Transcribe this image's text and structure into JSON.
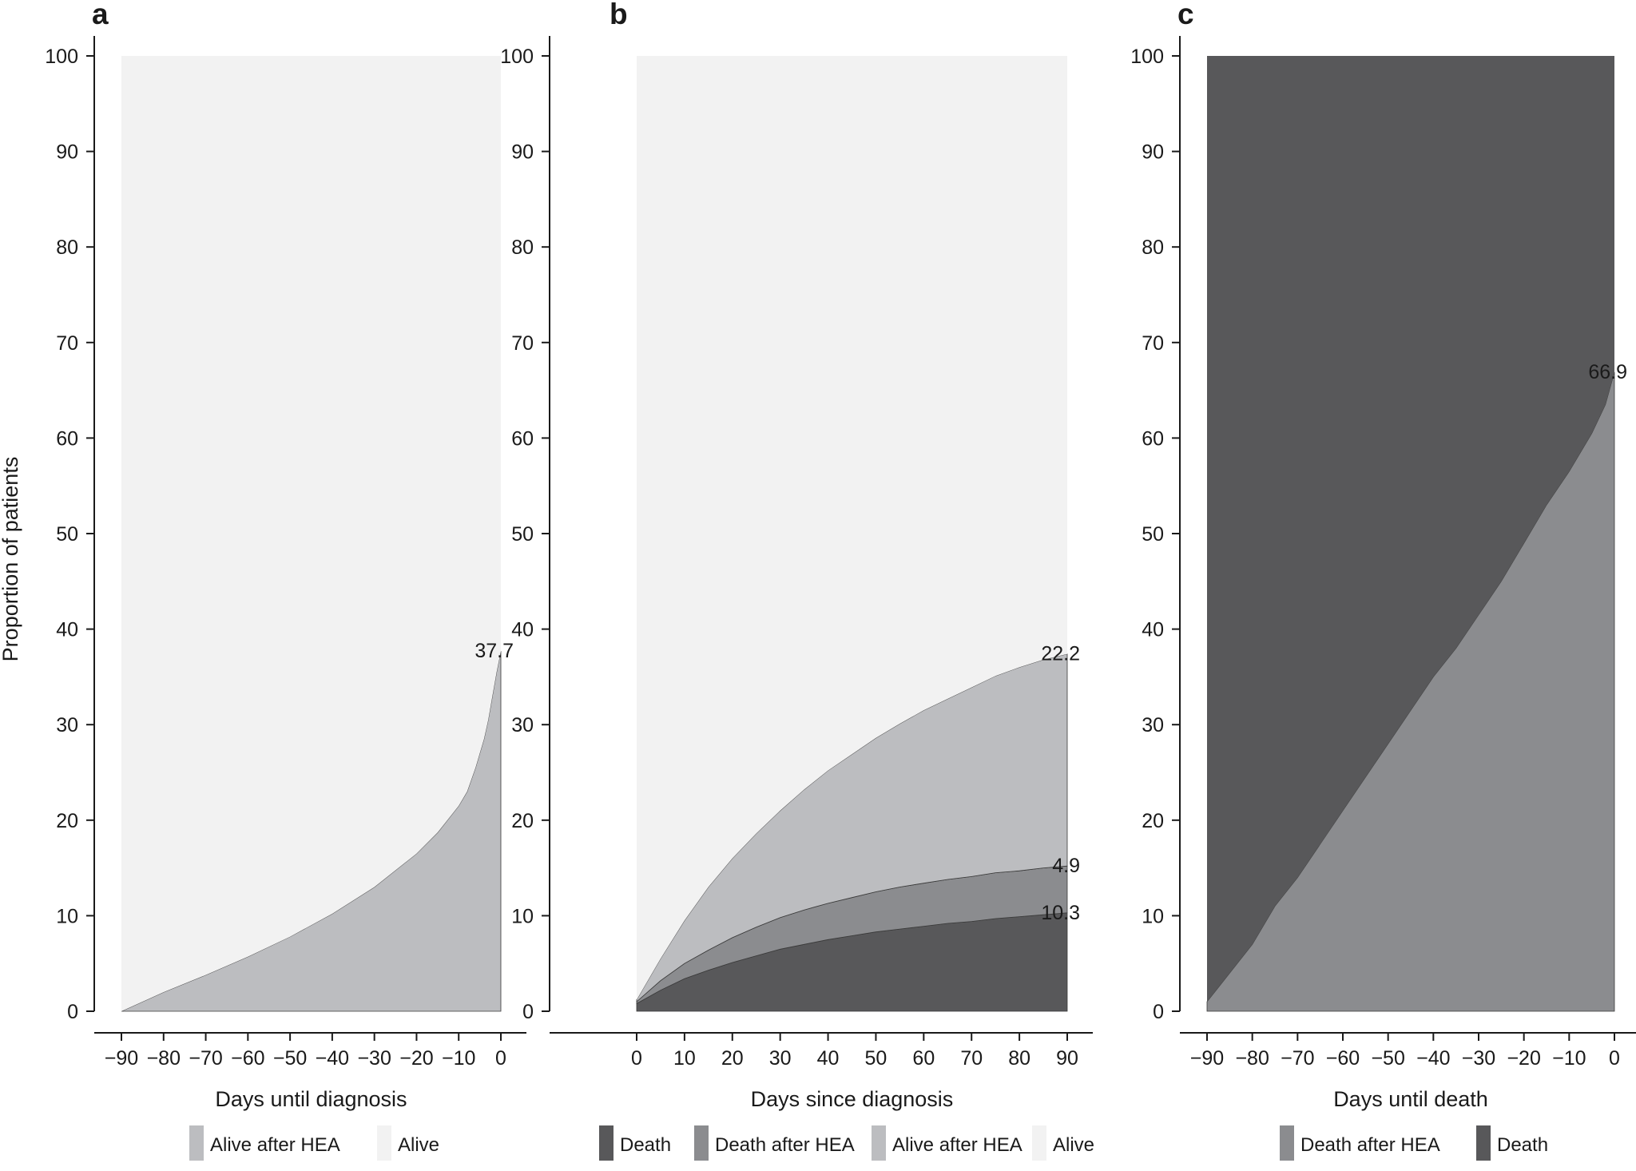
{
  "figure": {
    "ylabel": "Proportion of patients"
  },
  "colors": {
    "alive": "#f2f2f2",
    "alive_after_hea": "#bcbdc0",
    "death_after_hea": "#8b8c8f",
    "death": "#58585a",
    "axis": "#1a1a1a"
  },
  "chart_data": [
    {
      "type": "area",
      "stacked": true,
      "panel": "a",
      "xlabel": "Days until diagnosis",
      "ylabel": "Proportion of patients",
      "xlim": [
        -90,
        0
      ],
      "ylim": [
        0,
        100
      ],
      "xticks": [
        -90,
        -80,
        -70,
        -60,
        -50,
        -40,
        -30,
        -20,
        -10,
        0
      ],
      "xtick_labels": [
        "−90",
        "−80",
        "−70",
        "−60",
        "−50",
        "−40",
        "−30",
        "−20",
        "−10",
        "0"
      ],
      "yticks": [
        0,
        10,
        20,
        30,
        40,
        50,
        60,
        70,
        80,
        90,
        100
      ],
      "ytick_labels": [
        "0",
        "10",
        "20",
        "30",
        "40",
        "50",
        "60",
        "70",
        "80",
        "90",
        "100"
      ],
      "x": [
        -90,
        -80,
        -70,
        -60,
        -50,
        -40,
        -30,
        -20,
        -15,
        -10,
        -8,
        -6,
        -4,
        -3,
        -2,
        -1,
        0
      ],
      "series": [
        {
          "name": "Alive after HEA",
          "color": "#bcbdc0",
          "values": [
            0,
            2,
            3.8,
            5.7,
            7.8,
            10.2,
            13,
            16.5,
            18.7,
            21.5,
            23,
            25.5,
            28.5,
            30.5,
            33,
            35.5,
            37.7
          ]
        },
        {
          "name": "Alive",
          "color": "#f2f2f2",
          "values": [
            100,
            98,
            96.2,
            94.3,
            92.2,
            89.8,
            87,
            83.5,
            81.3,
            78.5,
            77,
            74.5,
            71.5,
            69.5,
            67,
            64.5,
            62.3
          ]
        }
      ],
      "annotations": [
        {
          "text": "37.7",
          "x": 0,
          "y": 37.7
        }
      ],
      "legend": [
        "Alive after HEA",
        "Alive"
      ]
    },
    {
      "type": "area",
      "stacked": true,
      "panel": "b",
      "xlabel": "Days since diagnosis",
      "ylabel": "",
      "xlim": [
        0,
        90
      ],
      "ylim": [
        0,
        100
      ],
      "xticks": [
        0,
        10,
        20,
        30,
        40,
        50,
        60,
        70,
        80,
        90
      ],
      "xtick_labels": [
        "0",
        "10",
        "20",
        "30",
        "40",
        "50",
        "60",
        "70",
        "80",
        "90"
      ],
      "yticks": [
        0,
        10,
        20,
        30,
        40,
        50,
        60,
        70,
        80,
        90,
        100
      ],
      "ytick_labels": [
        "0",
        "10",
        "20",
        "30",
        "40",
        "50",
        "60",
        "70",
        "80",
        "90",
        "100"
      ],
      "x": [
        0,
        5,
        10,
        15,
        20,
        25,
        30,
        35,
        40,
        45,
        50,
        55,
        60,
        65,
        70,
        75,
        80,
        85,
        90
      ],
      "series": [
        {
          "name": "Death",
          "color": "#58585a",
          "values": [
            0.8,
            2.2,
            3.4,
            4.3,
            5.1,
            5.8,
            6.5,
            7.0,
            7.5,
            7.9,
            8.3,
            8.6,
            8.9,
            9.2,
            9.4,
            9.7,
            9.9,
            10.1,
            10.3
          ]
        },
        {
          "name": "Death after HEA",
          "color": "#8b8c8f",
          "values": [
            0.2,
            1.0,
            1.6,
            2.1,
            2.6,
            3.0,
            3.3,
            3.6,
            3.8,
            4.0,
            4.2,
            4.4,
            4.5,
            4.6,
            4.7,
            4.8,
            4.8,
            4.9,
            4.9
          ]
        },
        {
          "name": "Alive after HEA",
          "color": "#bcbdc0",
          "values": [
            0.2,
            2.3,
            4.5,
            6.6,
            8.3,
            9.8,
            11.2,
            12.6,
            13.9,
            15.0,
            16.1,
            17.1,
            18.1,
            18.9,
            19.8,
            20.6,
            21.3,
            21.8,
            22.2
          ]
        },
        {
          "name": "Alive",
          "color": "#f2f2f2",
          "values": [
            98.8,
            94.5,
            90.5,
            87.0,
            84.0,
            81.4,
            79.0,
            76.8,
            74.8,
            73.1,
            71.4,
            69.9,
            68.5,
            67.3,
            66.1,
            64.9,
            64.0,
            63.2,
            62.6
          ]
        }
      ],
      "annotations": [
        {
          "text": "22.2",
          "x": 90,
          "y": 37.4
        },
        {
          "text": "4.9",
          "x": 90,
          "y": 15.2
        },
        {
          "text": "10.3",
          "x": 90,
          "y": 10.3
        }
      ],
      "legend": [
        "Death",
        "Death after HEA",
        "Alive after HEA",
        "Alive"
      ]
    },
    {
      "type": "area",
      "stacked": true,
      "panel": "c",
      "xlabel": "Days until death",
      "ylabel": "",
      "xlim": [
        -90,
        0
      ],
      "ylim": [
        0,
        100
      ],
      "xticks": [
        -90,
        -80,
        -70,
        -60,
        -50,
        -40,
        -30,
        -20,
        -10,
        0
      ],
      "xtick_labels": [
        "−90",
        "−80",
        "−70",
        "−60",
        "−50",
        "−40",
        "−30",
        "−20",
        "−10",
        "0"
      ],
      "yticks": [
        0,
        10,
        20,
        30,
        40,
        50,
        60,
        70,
        80,
        90,
        100
      ],
      "ytick_labels": [
        "0",
        "10",
        "20",
        "30",
        "40",
        "50",
        "60",
        "70",
        "80",
        "90",
        "100"
      ],
      "x": [
        -90,
        -80,
        -75,
        -70,
        -65,
        -60,
        -55,
        -50,
        -45,
        -40,
        -35,
        -30,
        -25,
        -20,
        -15,
        -10,
        -5,
        -2,
        0
      ],
      "series": [
        {
          "name": "Death after HEA",
          "color": "#8b8c8f",
          "values": [
            1,
            7,
            11,
            14,
            17.5,
            21,
            24.5,
            28,
            31.5,
            35,
            38,
            41.5,
            45,
            49,
            53,
            56.5,
            60.5,
            63.5,
            66.9
          ]
        },
        {
          "name": "Death",
          "color": "#58585a",
          "values": [
            99,
            93,
            89,
            86,
            82.5,
            79,
            75.5,
            72,
            68.5,
            65,
            62,
            58.5,
            55,
            51,
            47,
            43.5,
            39.5,
            36.5,
            33.1
          ]
        }
      ],
      "annotations": [
        {
          "text": "66.9",
          "x": 0,
          "y": 66.9
        }
      ],
      "legend": [
        "Death after HEA",
        "Death"
      ]
    }
  ]
}
